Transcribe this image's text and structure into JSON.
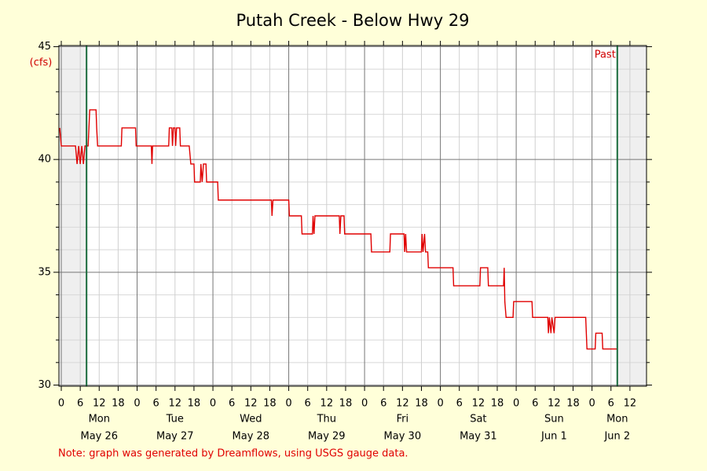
{
  "chart_data": {
    "type": "line",
    "title": "Putah Creek - Below Hwy 29",
    "y_unit": "(cfs)",
    "past_label": "Past",
    "note": "Note: graph was generated by Dreamflows, using USGS gauge data.",
    "xlim": [
      -0.75,
      185.25
    ],
    "ylim": [
      29.95,
      45.05
    ],
    "yticks": [
      30,
      35,
      40,
      45
    ],
    "yminor": [
      31,
      32,
      33,
      34,
      36,
      37,
      38,
      39,
      41,
      42,
      43,
      44
    ],
    "xticks": [
      {
        "value": 0,
        "label": "0"
      },
      {
        "value": 6,
        "label": "6"
      },
      {
        "value": 12,
        "label": "12"
      },
      {
        "value": 18,
        "label": "18"
      },
      {
        "value": 24,
        "label": "0"
      },
      {
        "value": 30,
        "label": "6"
      },
      {
        "value": 36,
        "label": "12"
      },
      {
        "value": 42,
        "label": "18"
      },
      {
        "value": 48,
        "label": "0"
      },
      {
        "value": 54,
        "label": "6"
      },
      {
        "value": 60,
        "label": "12"
      },
      {
        "value": 66,
        "label": "18"
      },
      {
        "value": 72,
        "label": "0"
      },
      {
        "value": 78,
        "label": "6"
      },
      {
        "value": 84,
        "label": "12"
      },
      {
        "value": 90,
        "label": "18"
      },
      {
        "value": 96,
        "label": "0"
      },
      {
        "value": 102,
        "label": "6"
      },
      {
        "value": 108,
        "label": "12"
      },
      {
        "value": 114,
        "label": "18"
      },
      {
        "value": 120,
        "label": "0"
      },
      {
        "value": 126,
        "label": "6"
      },
      {
        "value": 132,
        "label": "12"
      },
      {
        "value": 138,
        "label": "18"
      },
      {
        "value": 144,
        "label": "0"
      },
      {
        "value": 150,
        "label": "6"
      },
      {
        "value": 156,
        "label": "12"
      },
      {
        "value": 162,
        "label": "18"
      },
      {
        "value": 168,
        "label": "0"
      },
      {
        "value": 174,
        "label": "6"
      },
      {
        "value": 180,
        "label": "12"
      }
    ],
    "day_labels": [
      {
        "x": 12,
        "day": "Mon",
        "date": "May 26"
      },
      {
        "x": 36,
        "day": "Tue",
        "date": "May 27"
      },
      {
        "x": 60,
        "day": "Wed",
        "date": "May 28"
      },
      {
        "x": 84,
        "day": "Thu",
        "date": "May 29"
      },
      {
        "x": 108,
        "day": "Fri",
        "date": "May 30"
      },
      {
        "x": 132,
        "day": "Sat",
        "date": "May 31"
      },
      {
        "x": 156,
        "day": "Sun",
        "date": "Jun 1"
      },
      {
        "x": 176,
        "day": "Mon",
        "date": "Jun 2"
      }
    ],
    "shaded": [
      [
        -0.75,
        8
      ],
      [
        176,
        185.25
      ]
    ],
    "now_lines": [
      8,
      176
    ],
    "series": [
      {
        "color": "#e00000",
        "x": [
          -0.5,
          0,
          4.5,
          5,
          5.5,
          6,
          6.5,
          7,
          7.5,
          8.5,
          9,
          11,
          11.2,
          11.5,
          19,
          19.2,
          23.5,
          23.7,
          28.5,
          28.7,
          28.9,
          34,
          34.2,
          35,
          35.2,
          35.5,
          36,
          36.2,
          36.5,
          37.5,
          37.7,
          40.5,
          41,
          42,
          42.2,
          44,
          44.2,
          44.6,
          45,
          45.8,
          46,
          49.5,
          49.7,
          66.5,
          66.7,
          67,
          72,
          72.2,
          76,
          76.2,
          79.5,
          79.7,
          80,
          80.3,
          88,
          88.2,
          88.5,
          89.5,
          89.7,
          98,
          98.2,
          104,
          104.2,
          108.5,
          108.7,
          109,
          109.3,
          114,
          114.2,
          114.5,
          115,
          115.3,
          116,
          116.2,
          124,
          124.2,
          132.5,
          132.7,
          135,
          135.2,
          140,
          140.2,
          140.4,
          140.8,
          143,
          143.2,
          149,
          149.2,
          154,
          154.2,
          154.5,
          155,
          155.3,
          156,
          156.3,
          166,
          166.2,
          166.4,
          169,
          169.2,
          171.2,
          171.4,
          176
        ],
        "values": [
          41.4,
          40.6,
          40.6,
          39.8,
          40.6,
          39.8,
          40.6,
          39.8,
          40.6,
          40.6,
          42.2,
          42.2,
          41.4,
          40.6,
          40.6,
          41.4,
          41.4,
          40.6,
          40.6,
          39.8,
          40.6,
          40.6,
          41.4,
          41.4,
          40.6,
          41.4,
          41.4,
          40.6,
          41.4,
          41.4,
          40.6,
          40.6,
          39.8,
          39.8,
          39.0,
          39.0,
          39.8,
          39.0,
          39.8,
          39.8,
          39.0,
          39.0,
          38.2,
          38.2,
          37.5,
          38.2,
          38.2,
          37.5,
          37.5,
          36.7,
          36.7,
          37.5,
          36.7,
          37.5,
          37.5,
          36.7,
          37.5,
          37.5,
          36.7,
          36.7,
          35.9,
          35.9,
          36.7,
          36.7,
          35.9,
          36.7,
          35.9,
          35.9,
          36.7,
          35.9,
          36.7,
          35.9,
          35.9,
          35.2,
          35.2,
          34.4,
          34.4,
          35.2,
          35.2,
          34.4,
          34.4,
          35.2,
          33.7,
          33.0,
          33.0,
          33.7,
          33.7,
          33.0,
          33.0,
          32.3,
          33.0,
          32.3,
          33.0,
          32.3,
          33.0,
          33.0,
          32.3,
          31.6,
          31.6,
          32.3,
          32.3,
          31.6,
          31.6
        ]
      }
    ]
  }
}
